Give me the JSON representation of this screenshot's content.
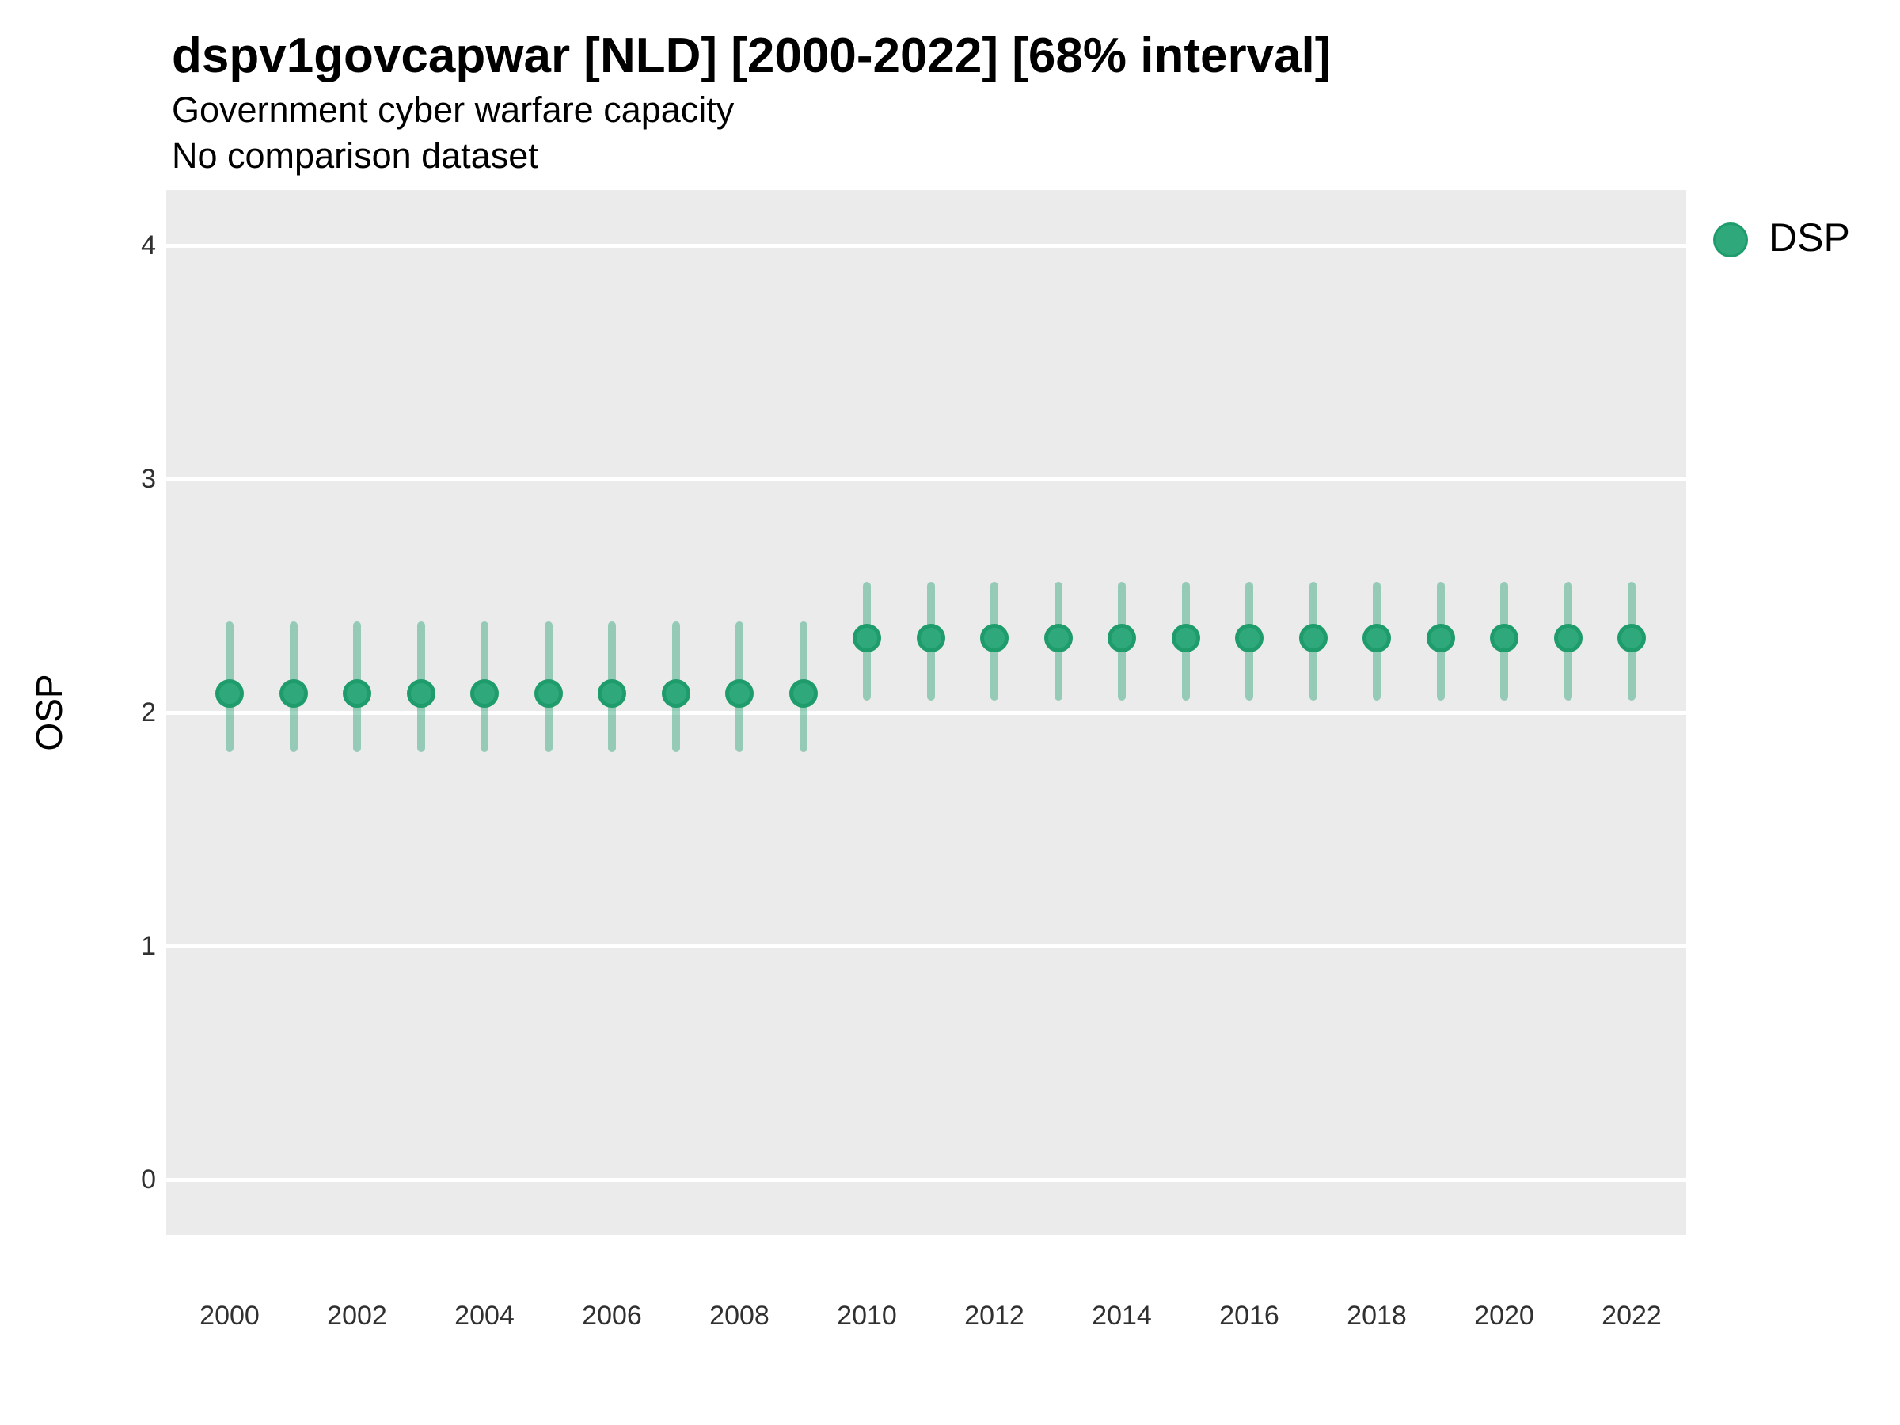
{
  "figure": {
    "title": "dspv1govcapwar [NLD] [2000-2022] [68% interval]",
    "subtitle": "Government cyber warfare capacity",
    "comparison_note": "No comparison dataset",
    "y_axis_label": "OSP"
  },
  "legend": {
    "position": "right",
    "items": [
      {
        "label": "DSP",
        "color": "#2fa97c",
        "ring_color": "#1f9c6b"
      }
    ]
  },
  "colors": {
    "panel_background": "#ebebeb",
    "gridline": "#ffffff",
    "point_fill": "#2fa97c",
    "point_ring": "#1f9c6b",
    "interval_bar": "rgba(44,163,118,0.45)",
    "text": "#000000",
    "tick_text": "#303030"
  },
  "chart_data": {
    "type": "pointrange",
    "title": "dspv1govcapwar [NLD] [2000-2022] [68% interval]",
    "subtitle": "Government cyber warfare capacity",
    "note": "No comparison dataset",
    "interval_level": "68%",
    "country": "NLD",
    "xlabel": "",
    "ylabel": "OSP",
    "ylim": [
      -0.25,
      4.25
    ],
    "y_ticks": [
      0,
      1,
      2,
      3,
      4
    ],
    "x_ticks": [
      2000,
      2002,
      2004,
      2006,
      2008,
      2010,
      2012,
      2014,
      2016,
      2018,
      2020,
      2022
    ],
    "grid": "horizontal-major-only",
    "legend_position": "right",
    "series": [
      {
        "name": "DSP",
        "color": "#2fa97c",
        "interval_color": "rgba(44,163,118,0.45)",
        "points": [
          {
            "x": 2000,
            "y": 2.08,
            "lo": 1.83,
            "hi": 2.39
          },
          {
            "x": 2001,
            "y": 2.08,
            "lo": 1.83,
            "hi": 2.39
          },
          {
            "x": 2002,
            "y": 2.08,
            "lo": 1.83,
            "hi": 2.39
          },
          {
            "x": 2003,
            "y": 2.08,
            "lo": 1.83,
            "hi": 2.39
          },
          {
            "x": 2004,
            "y": 2.08,
            "lo": 1.83,
            "hi": 2.39
          },
          {
            "x": 2005,
            "y": 2.08,
            "lo": 1.83,
            "hi": 2.39
          },
          {
            "x": 2006,
            "y": 2.08,
            "lo": 1.83,
            "hi": 2.39
          },
          {
            "x": 2007,
            "y": 2.08,
            "lo": 1.83,
            "hi": 2.39
          },
          {
            "x": 2008,
            "y": 2.08,
            "lo": 1.83,
            "hi": 2.39
          },
          {
            "x": 2009,
            "y": 2.08,
            "lo": 1.83,
            "hi": 2.39
          },
          {
            "x": 2010,
            "y": 2.32,
            "lo": 2.05,
            "hi": 2.56
          },
          {
            "x": 2011,
            "y": 2.32,
            "lo": 2.05,
            "hi": 2.56
          },
          {
            "x": 2012,
            "y": 2.32,
            "lo": 2.05,
            "hi": 2.56
          },
          {
            "x": 2013,
            "y": 2.32,
            "lo": 2.05,
            "hi": 2.56
          },
          {
            "x": 2014,
            "y": 2.32,
            "lo": 2.05,
            "hi": 2.56
          },
          {
            "x": 2015,
            "y": 2.32,
            "lo": 2.05,
            "hi": 2.56
          },
          {
            "x": 2016,
            "y": 2.32,
            "lo": 2.05,
            "hi": 2.56
          },
          {
            "x": 2017,
            "y": 2.32,
            "lo": 2.05,
            "hi": 2.56
          },
          {
            "x": 2018,
            "y": 2.32,
            "lo": 2.05,
            "hi": 2.56
          },
          {
            "x": 2019,
            "y": 2.32,
            "lo": 2.05,
            "hi": 2.56
          },
          {
            "x": 2020,
            "y": 2.32,
            "lo": 2.05,
            "hi": 2.56
          },
          {
            "x": 2021,
            "y": 2.32,
            "lo": 2.05,
            "hi": 2.56
          },
          {
            "x": 2022,
            "y": 2.32,
            "lo": 2.05,
            "hi": 2.56
          }
        ]
      }
    ]
  }
}
